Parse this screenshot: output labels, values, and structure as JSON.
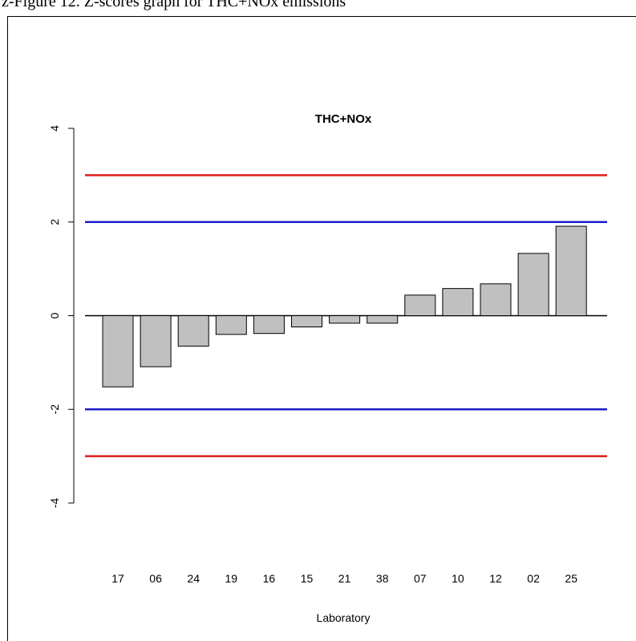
{
  "page": {
    "caption_fragment": "z-Figure 12. Z-scores graph for THC+NOx emissions"
  },
  "chart_data": {
    "type": "bar",
    "title": "THC+NOx",
    "xlabel": "Laboratory",
    "ylabel": "",
    "ylim": [
      -4,
      4
    ],
    "yticks": [
      -4,
      -2,
      0,
      2,
      4
    ],
    "categories": [
      "17",
      "06",
      "24",
      "19",
      "16",
      "15",
      "21",
      "38",
      "07",
      "10",
      "12",
      "02",
      "25"
    ],
    "values": [
      -1.52,
      -1.09,
      -0.65,
      -0.4,
      -0.38,
      -0.24,
      -0.16,
      -0.16,
      0.44,
      0.58,
      0.68,
      1.33,
      1.91
    ],
    "reference_lines": [
      {
        "value": 3,
        "color": "#dd1c1c"
      },
      {
        "value": 2,
        "color": "#1c1cc8"
      },
      {
        "value": -2,
        "color": "#1c1cc8"
      },
      {
        "value": -3,
        "color": "#dd1c1c"
      }
    ],
    "bar_color": "#c0c0c0",
    "bar_edge_color": "#000000",
    "grid": false
  }
}
